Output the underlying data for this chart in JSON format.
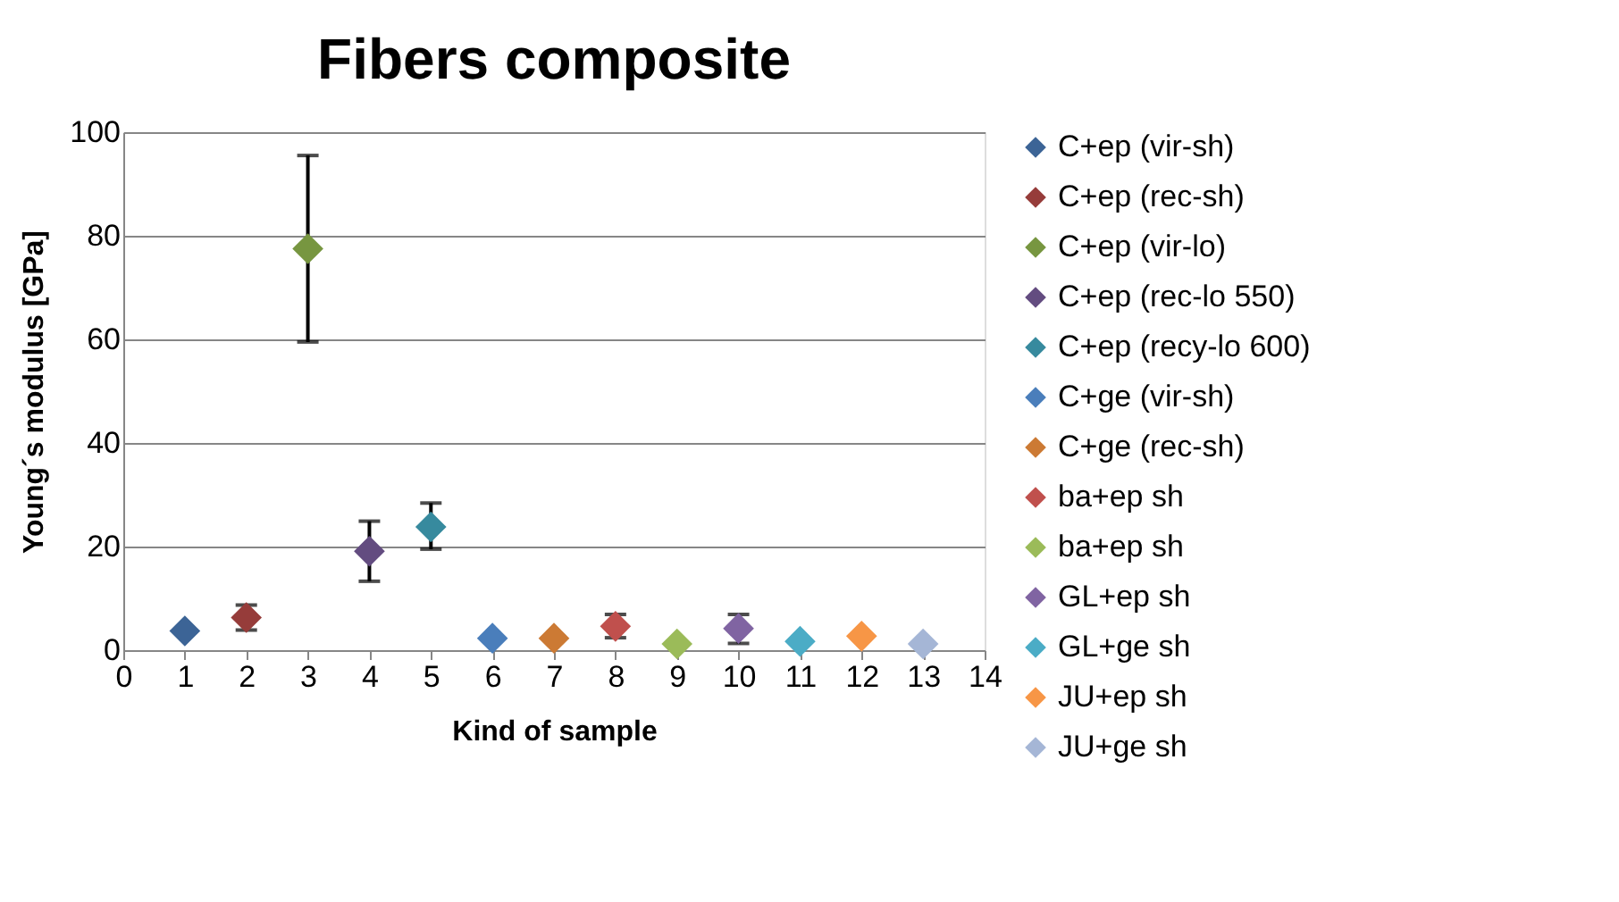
{
  "chart_data": {
    "type": "scatter",
    "title": "Fibers composite",
    "xlabel": "Kind of sample",
    "ylabel": "Young´s modulus [GPa]",
    "xlim": [
      0,
      14
    ],
    "xticks": [
      0,
      1,
      2,
      3,
      4,
      5,
      6,
      7,
      8,
      9,
      10,
      11,
      12,
      13,
      14
    ],
    "ylim": [
      0,
      100
    ],
    "yticks": [
      0,
      20,
      40,
      60,
      80,
      100
    ],
    "grid": "y",
    "legend": "right",
    "marker": "diamond",
    "series": [
      {
        "name": "C+ep (vir-sh)",
        "color": "#3c6496",
        "x": [
          1
        ],
        "values": [
          3.7
        ]
      },
      {
        "name": "C+ep (rec-sh)",
        "color": "#963c3a",
        "x": [
          2
        ],
        "values": [
          6.3
        ],
        "errors": [
          [
            3.9,
            8.7
          ]
        ]
      },
      {
        "name": "C+ep (vir-lo)",
        "color": "#779640",
        "x": [
          3
        ],
        "values": [
          77.5
        ],
        "errors": [
          [
            59.5,
            95.5
          ]
        ]
      },
      {
        "name": "C+ep (rec-lo 550)",
        "color": "#634c80",
        "x": [
          4
        ],
        "values": [
          19.1
        ],
        "errors": [
          [
            13.3,
            24.9
          ]
        ]
      },
      {
        "name": "C+ep (recy-lo 600)",
        "color": "#378a9e",
        "x": [
          5
        ],
        "values": [
          23.8
        ],
        "errors": [
          [
            19.5,
            28.4
          ]
        ]
      },
      {
        "name": "C+ge (vir-sh)",
        "color": "#4a7ebb",
        "x": [
          6
        ],
        "values": [
          2.3
        ]
      },
      {
        "name": "C+ge (rec-sh)",
        "color": "#cc7a34",
        "x": [
          7
        ],
        "values": [
          2.3
        ]
      },
      {
        "name": "ba+ep sh",
        "color": "#c0504d",
        "x": [
          8
        ],
        "values": [
          4.6
        ],
        "errors": [
          [
            2.4,
            6.9
          ]
        ]
      },
      {
        "name": "ba+ep sh",
        "color": "#9bbb59",
        "x": [
          9
        ],
        "values": [
          1.2
        ]
      },
      {
        "name": "GL+ep sh",
        "color": "#8064a2",
        "x": [
          10
        ],
        "values": [
          4.2
        ],
        "errors": [
          [
            1.3,
            6.9
          ]
        ]
      },
      {
        "name": "GL+ge sh",
        "color": "#4bacc6",
        "x": [
          11
        ],
        "values": [
          1.7
        ]
      },
      {
        "name": "JU+ep sh",
        "color": "#f79646",
        "x": [
          12
        ],
        "values": [
          2.7
        ]
      },
      {
        "name": "JU+ge sh",
        "color": "#a5b6d6",
        "x": [
          13
        ],
        "values": [
          1.2
        ]
      }
    ]
  }
}
